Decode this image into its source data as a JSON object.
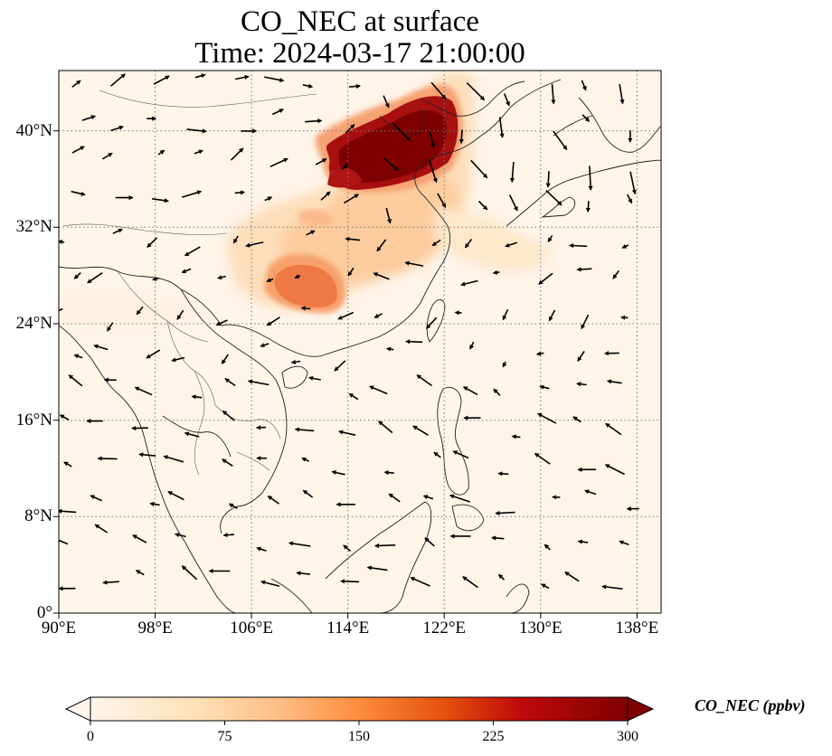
{
  "title": {
    "line1": "CO_NEC at surface",
    "line2": "Time: 2024-03-17 21:00:00"
  },
  "map": {
    "variable": "CO_NEC",
    "level": "surface",
    "lon_range": [
      90,
      140
    ],
    "lat_range": [
      0,
      45
    ],
    "lon_ticks": [
      "90°E",
      "98°E",
      "106°E",
      "114°E",
      "122°E",
      "130°E",
      "138°E"
    ],
    "lat_ticks": [
      "0°",
      "8°N",
      "16°N",
      "24°N",
      "32°N",
      "40°N"
    ],
    "gridlines": true,
    "coastlines": true,
    "wind_vectors": true,
    "plumes": [
      {
        "region": "North China Plain",
        "intensity": "above 300 ppbv"
      },
      {
        "region": "Sichuan Basin",
        "intensity": "about 150-190 ppbv"
      }
    ]
  },
  "colorbar": {
    "label": "CO_NEC (ppbv)",
    "min": 0,
    "max": 300,
    "ticks": [
      "0",
      "75",
      "150",
      "225",
      "300"
    ],
    "extend": "both",
    "colormap": [
      "#fff5eb",
      "#fdd49e",
      "#fdae6b",
      "#f16913",
      "#d94801",
      "#a50f15",
      "#7f0000"
    ]
  }
}
